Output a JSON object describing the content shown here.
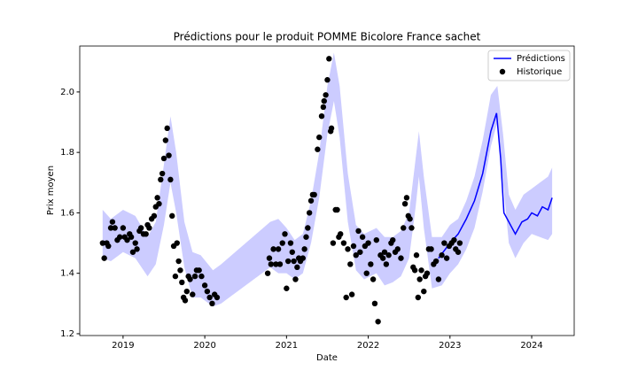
{
  "chart_data": {
    "type": "line",
    "title": "Prédictions pour le produit POMME Bicolore France sachet",
    "xlabel": "Date",
    "ylabel": "Prix moyen",
    "xlim": [
      2018.47,
      2024.52
    ],
    "xticks": [
      2019,
      2020,
      2021,
      2022,
      2023,
      2024
    ],
    "ylim": [
      1.194,
      2.152
    ],
    "yticks": [
      1.2,
      1.4,
      1.6,
      1.8,
      {
        "value": 2,
        "label": "2.0"
      }
    ],
    "legend": "upper right",
    "band": {
      "color": "#0000ff",
      "x": [
        2018.75,
        2018.85,
        2019.0,
        2019.15,
        2019.3,
        2019.4,
        2019.5,
        2019.58,
        2019.65,
        2019.75,
        2019.85,
        2019.95,
        2020.1,
        2020.2,
        2020.8,
        2020.9,
        2021.0,
        2021.1,
        2021.2,
        2021.3,
        2021.4,
        2021.5,
        2021.58,
        2021.65,
        2021.75,
        2021.85,
        2021.95,
        2022.1,
        2022.2,
        2022.3,
        2022.4,
        2022.5,
        2022.58,
        2022.62,
        2022.68,
        2022.78,
        2022.9,
        2023.0,
        2023.1,
        2023.2,
        2023.3,
        2023.4,
        2023.5,
        2023.58,
        2023.65,
        2023.72,
        2023.8,
        2023.9,
        2024.0,
        2024.1,
        2024.2,
        2024.25
      ],
      "lower": [
        1.45,
        1.44,
        1.47,
        1.45,
        1.39,
        1.43,
        1.56,
        1.7,
        1.6,
        1.42,
        1.32,
        1.32,
        1.29,
        1.3,
        1.42,
        1.4,
        1.4,
        1.38,
        1.4,
        1.5,
        1.65,
        1.86,
        1.97,
        1.85,
        1.57,
        1.41,
        1.38,
        1.4,
        1.36,
        1.37,
        1.39,
        1.45,
        1.62,
        1.72,
        1.55,
        1.35,
        1.36,
        1.4,
        1.43,
        1.48,
        1.55,
        1.67,
        1.82,
        1.9,
        1.7,
        1.5,
        1.45,
        1.5,
        1.53,
        1.52,
        1.51,
        1.53
      ],
      "upper": [
        1.61,
        1.58,
        1.61,
        1.59,
        1.52,
        1.57,
        1.76,
        1.92,
        1.8,
        1.57,
        1.47,
        1.46,
        1.41,
        1.43,
        1.57,
        1.58,
        1.55,
        1.51,
        1.53,
        1.64,
        1.8,
        2.02,
        2.13,
        2.02,
        1.73,
        1.56,
        1.53,
        1.55,
        1.52,
        1.52,
        1.54,
        1.6,
        1.78,
        1.87,
        1.72,
        1.52,
        1.52,
        1.56,
        1.58,
        1.64,
        1.72,
        1.84,
        1.99,
        2.02,
        1.86,
        1.66,
        1.61,
        1.66,
        1.68,
        1.7,
        1.72,
        1.75
      ]
    },
    "series": [
      {
        "name": "Prédictions",
        "type": "line",
        "color": "#0000ff",
        "x": [
          2022.86,
          2023.0,
          2023.1,
          2023.2,
          2023.3,
          2023.4,
          2023.5,
          2023.57,
          2023.62,
          2023.66,
          2023.72,
          2023.8,
          2023.88,
          2023.95,
          2024.0,
          2024.07,
          2024.13,
          2024.2,
          2024.25
        ],
        "values": [
          1.45,
          1.5,
          1.53,
          1.58,
          1.64,
          1.73,
          1.87,
          1.93,
          1.78,
          1.6,
          1.57,
          1.53,
          1.57,
          1.58,
          1.6,
          1.59,
          1.62,
          1.61,
          1.65
        ]
      },
      {
        "name": "Historique",
        "type": "scatter",
        "color": "#000000",
        "x": [
          2018.75,
          2018.77,
          2018.8,
          2018.82,
          2018.85,
          2018.87,
          2018.9,
          2018.93,
          2018.96,
          2019.0,
          2019.02,
          2019.05,
          2019.08,
          2019.1,
          2019.12,
          2019.15,
          2019.17,
          2019.2,
          2019.22,
          2019.25,
          2019.28,
          2019.3,
          2019.32,
          2019.35,
          2019.38,
          2019.4,
          2019.42,
          2019.44,
          2019.46,
          2019.48,
          2019.5,
          2019.52,
          2019.54,
          2019.56,
          2019.58,
          2019.6,
          2019.62,
          2019.64,
          2019.66,
          2019.68,
          2019.7,
          2019.72,
          2019.74,
          2019.76,
          2019.78,
          2019.8,
          2019.82,
          2019.85,
          2019.88,
          2019.9,
          2019.93,
          2019.96,
          2020.0,
          2020.03,
          2020.06,
          2020.09,
          2020.12,
          2020.15,
          2020.77,
          2020.79,
          2020.81,
          2020.84,
          2020.87,
          2020.9,
          2020.92,
          2020.95,
          2020.98,
          2021.0,
          2021.02,
          2021.05,
          2021.07,
          2021.09,
          2021.11,
          2021.13,
          2021.15,
          2021.17,
          2021.2,
          2021.22,
          2021.24,
          2021.26,
          2021.28,
          2021.3,
          2021.32,
          2021.34,
          2021.38,
          2021.4,
          2021.43,
          2021.45,
          2021.46,
          2021.48,
          2021.5,
          2021.52,
          2021.54,
          2021.55,
          2021.57,
          2021.6,
          2021.62,
          2021.64,
          2021.66,
          2021.7,
          2021.73,
          2021.75,
          2021.78,
          2021.8,
          2021.82,
          2021.85,
          2021.88,
          2021.9,
          2021.93,
          2021.96,
          2021.98,
          2022.0,
          2022.03,
          2022.06,
          2022.08,
          2022.1,
          2022.12,
          2022.15,
          2022.18,
          2022.2,
          2022.22,
          2022.25,
          2022.28,
          2022.3,
          2022.33,
          2022.36,
          2022.4,
          2022.43,
          2022.45,
          2022.47,
          2022.49,
          2022.51,
          2022.53,
          2022.55,
          2022.57,
          2022.59,
          2022.61,
          2022.63,
          2022.65,
          2022.68,
          2022.7,
          2022.72,
          2022.74,
          2022.77,
          2022.8,
          2022.83,
          2022.86,
          2022.9,
          2022.93,
          2022.96,
          2022.99,
          2023.02,
          2023.05,
          2023.07,
          2023.1,
          2023.12
        ],
        "values": [
          1.5,
          1.45,
          1.5,
          1.49,
          1.55,
          1.57,
          1.55,
          1.51,
          1.52,
          1.55,
          1.52,
          1.51,
          1.53,
          1.52,
          1.47,
          1.5,
          1.48,
          1.54,
          1.55,
          1.53,
          1.53,
          1.56,
          1.55,
          1.58,
          1.59,
          1.62,
          1.65,
          1.63,
          1.71,
          1.73,
          1.78,
          1.84,
          1.88,
          1.79,
          1.71,
          1.59,
          1.49,
          1.39,
          1.5,
          1.44,
          1.41,
          1.37,
          1.32,
          1.31,
          1.34,
          1.39,
          1.38,
          1.33,
          1.39,
          1.41,
          1.41,
          1.39,
          1.36,
          1.34,
          1.32,
          1.3,
          1.33,
          1.32,
          1.4,
          1.45,
          1.43,
          1.48,
          1.43,
          1.48,
          1.43,
          1.5,
          1.53,
          1.35,
          1.44,
          1.5,
          1.47,
          1.44,
          1.38,
          1.42,
          1.45,
          1.44,
          1.45,
          1.48,
          1.52,
          1.55,
          1.6,
          1.64,
          1.66,
          1.66,
          1.81,
          1.85,
          1.92,
          1.95,
          1.97,
          1.99,
          2.04,
          2.11,
          1.87,
          1.88,
          1.5,
          1.61,
          1.61,
          1.52,
          1.53,
          1.5,
          1.32,
          1.48,
          1.43,
          1.33,
          1.49,
          1.46,
          1.54,
          1.47,
          1.52,
          1.49,
          1.4,
          1.5,
          1.43,
          1.38,
          1.3,
          1.51,
          1.24,
          1.46,
          1.45,
          1.47,
          1.43,
          1.46,
          1.5,
          1.51,
          1.47,
          1.48,
          1.45,
          1.55,
          1.63,
          1.65,
          1.59,
          1.58,
          1.55,
          1.42,
          1.41,
          1.46,
          1.32,
          1.38,
          1.41,
          1.34,
          1.39,
          1.4,
          1.48,
          1.48,
          1.43,
          1.44,
          1.38,
          1.46,
          1.5,
          1.45,
          1.49,
          1.5,
          1.51,
          1.48,
          1.47,
          1.5
        ]
      }
    ]
  }
}
